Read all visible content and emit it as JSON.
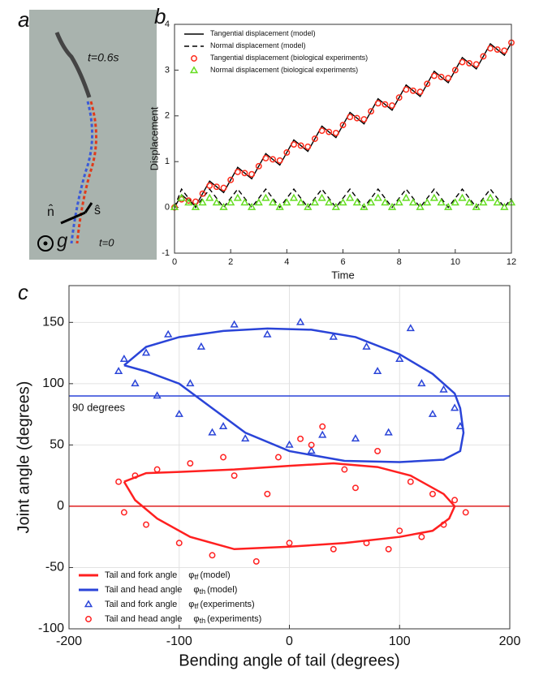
{
  "photo_panel": {
    "label": "a",
    "annotations": [
      "t=0.6s",
      "n̂",
      "ŝ",
      "g",
      "t=0"
    ]
  },
  "chart_data": [
    {
      "type": "line",
      "panel_label": "b",
      "x_label": "Time",
      "y_label": "Displacement",
      "xlim": [
        0,
        12
      ],
      "xticks": [
        0,
        2,
        4,
        6,
        8,
        10,
        12
      ],
      "ylim": [
        -1,
        4
      ],
      "yticks": [
        -1,
        0,
        1,
        2,
        3,
        4
      ],
      "grid": false,
      "legend": "upper left",
      "x": [
        0,
        0.25,
        0.5,
        0.75,
        1,
        1.25,
        1.5,
        1.75,
        2,
        2.25,
        2.5,
        2.75,
        3,
        3.25,
        3.5,
        3.75,
        4,
        4.25,
        4.5,
        4.75,
        5,
        5.25,
        5.5,
        5.75,
        6,
        6.25,
        6.5,
        6.75,
        7,
        7.25,
        7.5,
        7.75,
        8,
        8.25,
        8.5,
        8.75,
        9,
        9.25,
        9.5,
        9.75,
        10,
        10.25,
        10.5,
        10.75,
        11,
        11.25,
        11.5,
        11.75,
        12
      ],
      "series": [
        {
          "name": "Tangential displacement (model)",
          "color": "#000000",
          "style": "solid",
          "values": [
            0,
            0.275,
            0.15,
            0.025,
            0.3,
            0.575,
            0.45,
            0.325,
            0.6,
            0.875,
            0.75,
            0.625,
            0.9,
            1.175,
            1.05,
            0.925,
            1.2,
            1.475,
            1.35,
            1.225,
            1.5,
            1.775,
            1.65,
            1.525,
            1.8,
            2.075,
            1.95,
            1.825,
            2.1,
            2.375,
            2.25,
            2.125,
            2.4,
            2.675,
            2.55,
            2.425,
            2.7,
            2.975,
            2.85,
            2.725,
            3.0,
            3.275,
            3.15,
            3.025,
            3.3,
            3.575,
            3.45,
            3.325,
            3.6
          ]
        },
        {
          "name": "Normal displacement (model)",
          "color": "#000000",
          "style": "dashed",
          "values": [
            0,
            0.4,
            0.2,
            0,
            0.2,
            0.4,
            0.2,
            0,
            0.2,
            0.4,
            0.2,
            0,
            0.2,
            0.4,
            0.2,
            0,
            0.2,
            0.4,
            0.2,
            0,
            0.2,
            0.4,
            0.2,
            0,
            0.2,
            0.4,
            0.2,
            0,
            0.2,
            0.4,
            0.2,
            0,
            0.2,
            0.4,
            0.2,
            0,
            0.2,
            0.4,
            0.2,
            0,
            0.2,
            0.4,
            0.2,
            0,
            0.2,
            0.4,
            0.2,
            0,
            0.2
          ]
        },
        {
          "name": "Tangential displacement (biological experiments)",
          "color": "#ff2a1a",
          "style": "circle",
          "values": [
            0,
            0.175,
            0.15,
            0.125,
            0.3,
            0.475,
            0.45,
            0.425,
            0.6,
            0.775,
            0.75,
            0.725,
            0.9,
            1.075,
            1.05,
            1.025,
            1.2,
            1.375,
            1.35,
            1.325,
            1.5,
            1.675,
            1.65,
            1.625,
            1.8,
            1.975,
            1.95,
            1.925,
            2.1,
            2.275,
            2.25,
            2.225,
            2.4,
            2.575,
            2.55,
            2.525,
            2.7,
            2.875,
            2.85,
            2.825,
            3.0,
            3.175,
            3.15,
            3.125,
            3.3,
            3.475,
            3.45,
            3.425,
            3.6
          ]
        },
        {
          "name": "Normal displacement (biological experiments)",
          "color": "#66dd22",
          "style": "triangle",
          "values": [
            0,
            0.2,
            0.1,
            0,
            0.1,
            0.2,
            0.1,
            0,
            0.1,
            0.2,
            0.1,
            0,
            0.1,
            0.2,
            0.1,
            0,
            0.1,
            0.2,
            0.1,
            0,
            0.1,
            0.2,
            0.1,
            0,
            0.1,
            0.2,
            0.1,
            0,
            0.1,
            0.2,
            0.1,
            0,
            0.1,
            0.2,
            0.1,
            0,
            0.1,
            0.2,
            0.1,
            0,
            0.1,
            0.2,
            0.1,
            0,
            0.1,
            0.2,
            0.1,
            0,
            0.1
          ]
        }
      ]
    },
    {
      "type": "scatter",
      "panel_label": "c",
      "x_label": "Bending angle of tail (degrees)",
      "y_label": "Joint angle (degrees)",
      "xlim": [
        -200,
        200
      ],
      "xticks": [
        -200,
        -100,
        0,
        100,
        200
      ],
      "ylim": [
        -100,
        180
      ],
      "yticks": [
        -100,
        -50,
        0,
        50,
        100,
        150
      ],
      "grid": true,
      "legend": "lower left",
      "reference_lines": [
        {
          "y": 90,
          "color": "#2a44d8",
          "label": "90 degrees"
        },
        {
          "y": 0,
          "color": "#e02020"
        }
      ],
      "series": [
        {
          "name": "Tail and fork angle",
          "symbol": "φ",
          "subscript": "tf",
          "note": "(model)",
          "color": "#ff2020",
          "style": "solid",
          "x": [
            -150,
            -130,
            -100,
            -50,
            0,
            40,
            80,
            110,
            140,
            150,
            145,
            130,
            100,
            50,
            0,
            -50,
            -90,
            -120,
            -140,
            -150
          ],
          "y": [
            20,
            27,
            28,
            30,
            33,
            35,
            32,
            25,
            10,
            0,
            -10,
            -20,
            -25,
            -30,
            -33,
            -35,
            -25,
            -10,
            5,
            20
          ]
        },
        {
          "name": "Tail and head angle",
          "symbol": "φ",
          "subscript": "th",
          "note": "(model)",
          "color": "#2a44d8",
          "style": "solid",
          "x": [
            -150,
            -130,
            -100,
            -60,
            -20,
            20,
            60,
            100,
            130,
            150,
            155,
            158,
            155,
            140,
            100,
            50,
            0,
            -40,
            -70,
            -100,
            -130,
            -150
          ],
          "y": [
            115,
            130,
            138,
            143,
            145,
            144,
            138,
            124,
            108,
            92,
            80,
            60,
            45,
            38,
            36,
            37,
            45,
            60,
            80,
            100,
            110,
            115
          ]
        },
        {
          "name": "Tail and fork angle",
          "symbol": "φ",
          "subscript": "tf",
          "note": "(experiments)",
          "color": "#2a44d8",
          "style": "triangle",
          "x": [
            -155,
            -150,
            -140,
            -130,
            -120,
            -110,
            -100,
            -80,
            -70,
            -50,
            -40,
            -20,
            0,
            10,
            30,
            40,
            60,
            70,
            90,
            100,
            110,
            120,
            130,
            140,
            150,
            155,
            -90,
            -60,
            20,
            80
          ],
          "y": [
            110,
            120,
            100,
            125,
            90,
            140,
            75,
            130,
            60,
            148,
            55,
            140,
            50,
            150,
            58,
            138,
            55,
            130,
            60,
            120,
            145,
            100,
            75,
            95,
            80,
            65,
            100,
            65,
            45,
            110
          ]
        },
        {
          "name": "Tail and head angle",
          "symbol": "φ",
          "subscript": "th",
          "note": "(experiments)",
          "color": "#ff2020",
          "style": "circle",
          "x": [
            -155,
            -150,
            -140,
            -130,
            -120,
            -100,
            -90,
            -70,
            -50,
            -30,
            -10,
            0,
            20,
            40,
            50,
            70,
            80,
            100,
            110,
            120,
            130,
            140,
            150,
            160,
            -60,
            30,
            60,
            90,
            -20,
            10
          ],
          "y": [
            20,
            -5,
            25,
            -15,
            30,
            -30,
            35,
            -40,
            25,
            -45,
            40,
            -30,
            50,
            -35,
            30,
            -30,
            45,
            -20,
            20,
            -25,
            10,
            -15,
            5,
            -5,
            40,
            65,
            15,
            -35,
            10,
            55
          ]
        }
      ]
    }
  ]
}
